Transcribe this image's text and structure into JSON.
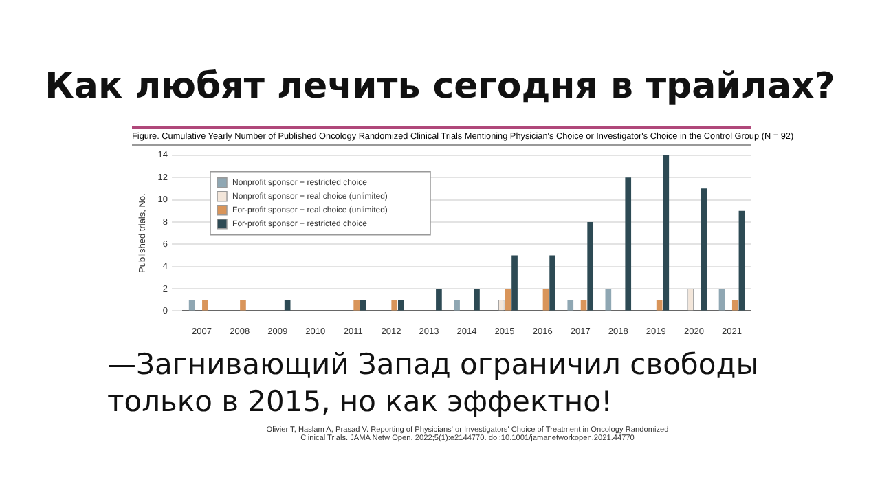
{
  "chart_data": {
    "type": "bar",
    "title": "Figure. Cumulative Yearly Number of Published Oncology Randomized Clinical Trials Mentioning Physician's Choice or Investigator's Choice in the Control Group (N = 92)",
    "ylabel": "Published trials, No.",
    "annotations": [
      "Как любят лечить сегодня в трайлах?",
      "—Загнивающий Запад ограничил свободы только в 2015, но как эффектно!",
      "Olivier T, Haslam A, Prasad V. Reporting of Physicians' or Investigators' Choice of Treatment in Oncology Randomized Clinical Trials. JAMA Netw Open. 2022;5(1):e2144770. doi:10.1001/jamanetworkopen.2021.44770"
    ],
    "categories": [
      "2007",
      "2008",
      "2009",
      "2010",
      "2011",
      "2012",
      "2013",
      "2014",
      "2015",
      "2016",
      "2017",
      "2018",
      "2019",
      "2020",
      "2021"
    ],
    "series": [
      {
        "name": "Nonprofit sponsor + restricted choice",
        "color": "#8fa7b3",
        "values": [
          1,
          null,
          null,
          null,
          null,
          null,
          null,
          1,
          null,
          null,
          1,
          2,
          null,
          null,
          2
        ]
      },
      {
        "name": "Nonprofit sponsor + real choice (unlimited)",
        "color": "#f3e6da",
        "values": [
          null,
          null,
          null,
          null,
          null,
          null,
          null,
          null,
          1,
          null,
          null,
          null,
          null,
          2,
          null
        ]
      },
      {
        "name": "For-profit sponsor + real choice (unlimited)",
        "color": "#d9955a",
        "values": [
          1,
          1,
          null,
          null,
          1,
          1,
          null,
          null,
          2,
          2,
          1,
          null,
          1,
          null,
          1
        ]
      },
      {
        "name": "For-profit sponsor + restricted choice",
        "color": "#2d4a54",
        "values": [
          null,
          null,
          1,
          null,
          1,
          1,
          2,
          2,
          5,
          5,
          8,
          12,
          14,
          11,
          9
        ]
      }
    ],
    "ylim": [
      0,
      14
    ],
    "yticks": [
      0,
      2,
      4,
      6,
      8,
      10,
      12,
      14
    ],
    "grid": "y",
    "legend": "top left"
  }
}
